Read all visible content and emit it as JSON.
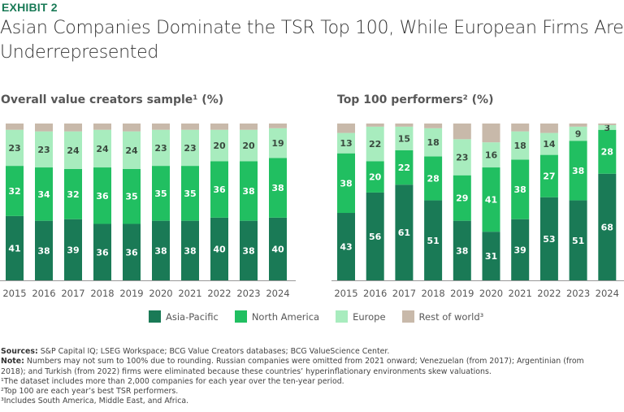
{
  "header": {
    "exhibit": "EXHIBIT 2",
    "title": "Asian Companies Dominate the TSR Top 100, While European Firms Are Underrepresented"
  },
  "colors": {
    "asia_pacific": "#1a7a56",
    "north_america": "#21bf61",
    "europe": "#a8ecbe",
    "rest_of_world": "#c8b9aa",
    "label_dark": "#3a4a3f",
    "label_light": "#ffffff",
    "axis": "#999999"
  },
  "legend": [
    {
      "key": "asia_pacific",
      "label": "Asia-Pacific"
    },
    {
      "key": "north_america",
      "label": "North America"
    },
    {
      "key": "europe",
      "label": "Europe"
    },
    {
      "key": "rest_of_world",
      "label": "Rest of world³"
    }
  ],
  "chart_data": [
    {
      "type": "bar",
      "stacked": true,
      "title": "Overall value creators sample¹ (%)",
      "xlabel": "",
      "ylabel": "",
      "ylim": [
        0,
        100
      ],
      "grid": false,
      "legend_position": "bottom",
      "categories": [
        "2015",
        "2016",
        "2017",
        "2018",
        "2019",
        "2020",
        "2021",
        "2022",
        "2023",
        "2024"
      ],
      "series": [
        {
          "name": "Asia-Pacific",
          "key": "asia_pacific",
          "values": [
            41,
            38,
            39,
            36,
            36,
            38,
            38,
            40,
            38,
            40
          ],
          "labeled": true
        },
        {
          "name": "North America",
          "key": "north_america",
          "values": [
            32,
            34,
            32,
            36,
            35,
            35,
            35,
            36,
            38,
            38
          ],
          "labeled": true
        },
        {
          "name": "Europe",
          "key": "europe",
          "values": [
            23,
            23,
            24,
            24,
            24,
            23,
            23,
            20,
            20,
            19
          ],
          "labeled": true
        },
        {
          "name": "Rest of world",
          "key": "rest_of_world",
          "values": [
            4,
            5,
            5,
            4,
            5,
            4,
            4,
            4,
            4,
            3
          ],
          "labeled": false
        }
      ]
    },
    {
      "type": "bar",
      "stacked": true,
      "title": "Top 100 performers² (%)",
      "xlabel": "",
      "ylabel": "",
      "ylim": [
        0,
        100
      ],
      "grid": false,
      "legend_position": "bottom",
      "categories": [
        "2015",
        "2016",
        "2017",
        "2018",
        "2019",
        "2020",
        "2021",
        "2022",
        "2023",
        "2024"
      ],
      "series": [
        {
          "name": "Asia-Pacific",
          "key": "asia_pacific",
          "values": [
            43,
            56,
            61,
            51,
            38,
            31,
            39,
            53,
            51,
            68
          ],
          "labeled": true
        },
        {
          "name": "North America",
          "key": "north_america",
          "values": [
            38,
            20,
            22,
            28,
            29,
            41,
            38,
            27,
            38,
            28
          ],
          "labeled": true
        },
        {
          "name": "Europe",
          "key": "europe",
          "values": [
            13,
            22,
            15,
            18,
            23,
            16,
            18,
            14,
            9,
            3
          ],
          "labeled": true
        },
        {
          "name": "Rest of world",
          "key": "rest_of_world",
          "values": [
            6,
            2,
            2,
            3,
            10,
            12,
            5,
            6,
            2,
            1
          ],
          "labeled": false
        }
      ]
    }
  ],
  "notes": {
    "sources_label": "Sources:",
    "sources_text": " S&P Capital IQ; LSEG Workspace; BCG Value Creators databases; BCG ValueScience Center.",
    "note_label": "Note:",
    "note_line1": " Numbers may not sum to 100% due to rounding. Russian companies were omitted from 2021 onward; Venezuelan (from 2017); Argentinian (from",
    "note_line2": "2018); and Turkish (from 2022) firms were eliminated because these countries’ hyperinflationary environments skew valuations.",
    "footnote1": "¹The dataset includes more than 2,000 companies for each year over the ten-year period.",
    "footnote2": "²Top 100 are each year’s best TSR performers.",
    "footnote3": "³Includes South America, Middle East, and Africa."
  }
}
